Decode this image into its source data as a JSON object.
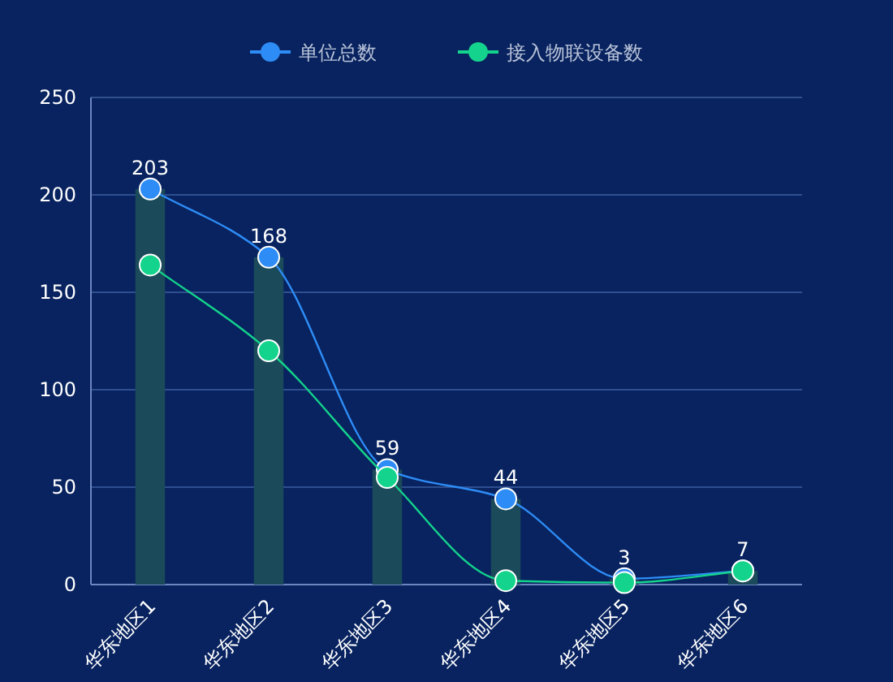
{
  "chart_data": {
    "type": "bar",
    "categories": [
      "华东地区1",
      "华东地区2",
      "华东地区3",
      "华东地区4",
      "华东地区5",
      "华东地区6"
    ],
    "series": [
      {
        "color": "#1b4a5a",
        "values": [
          203,
          168,
          59,
          44,
          3,
          7
        ],
        "value_labels": [
          "203",
          "168",
          "59",
          "44",
          "3",
          "7"
        ]
      },
      {
        "type": "line",
        "name": "单位总数",
        "color": "#2e8cf6",
        "values": [
          203,
          168,
          59,
          44,
          3,
          7
        ]
      },
      {
        "type": "line",
        "name": "接入物联设备数",
        "color": "#14d38c",
        "values": [
          164,
          120,
          55,
          2,
          1,
          7
        ]
      }
    ],
    "ylim": [
      0,
      250
    ],
    "yticks": [
      0,
      50,
      100,
      150,
      200,
      250
    ],
    "grid": "y",
    "legend": "top",
    "marker": "circle"
  }
}
